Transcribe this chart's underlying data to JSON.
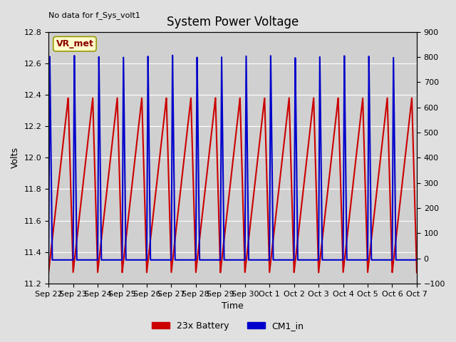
{
  "title": "System Power Voltage",
  "title_fontsize": 12,
  "xlabel": "Time",
  "ylabel": "Volts",
  "top_left_text": "No data for f_Sys_volt1",
  "vr_met_label": "VR_met",
  "legend_entries": [
    "23x Battery",
    "CM1_in"
  ],
  "legend_colors": [
    "#cc0000",
    "#0000cc"
  ],
  "ylim": [
    11.2,
    12.8
  ],
  "ylim2": [
    -100,
    900
  ],
  "background_color": "#e0e0e0",
  "plot_bg_color": "#d0d0d0",
  "grid_color": "#ffffff",
  "x_tick_labels": [
    "Sep 22",
    "Sep 23",
    "Sep 24",
    "Sep 25",
    "Sep 26",
    "Sep 27",
    "Sep 28",
    "Sep 29",
    "Sep 30",
    "Oct 1",
    "Oct 2",
    "Oct 3",
    "Oct 4",
    "Oct 5",
    "Oct 6",
    "Oct 7"
  ],
  "y_ticks_left": [
    11.2,
    11.4,
    11.6,
    11.8,
    12.0,
    12.2,
    12.4,
    12.6,
    12.8
  ],
  "y_ticks_right": [
    -100,
    0,
    100,
    200,
    300,
    400,
    500,
    600,
    700,
    800,
    900
  ],
  "n_days": 15,
  "red_peak": 12.38,
  "red_min": 11.27,
  "blue_peak": 12.65,
  "blue_base": 11.35,
  "line_width": 1.5,
  "tick_fontsize": 8
}
